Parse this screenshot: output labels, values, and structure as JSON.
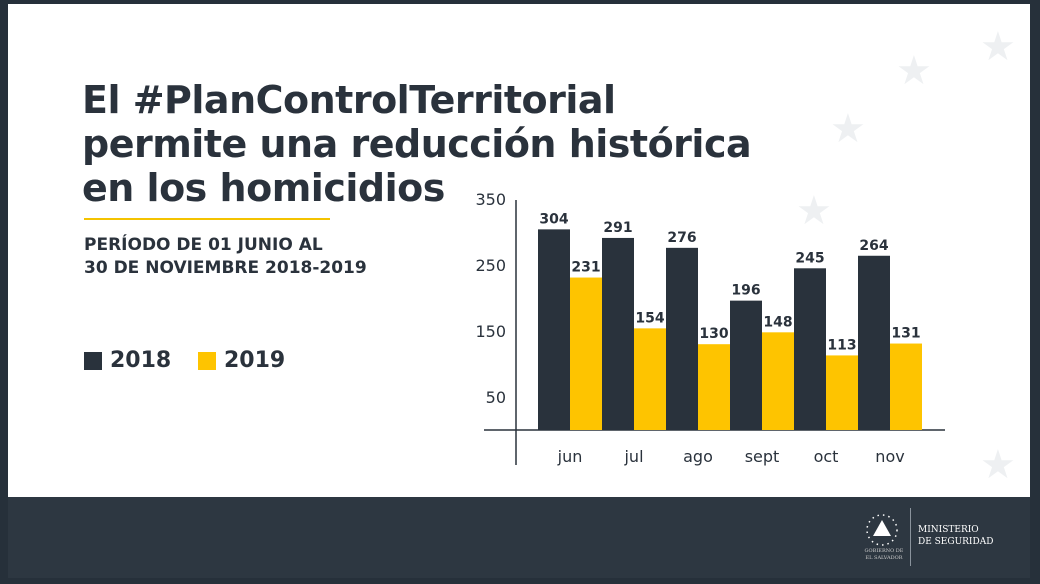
{
  "title_lines": [
    "El #PlanControlTerritorial",
    "permite una reducción histórica",
    "en los homicidios"
  ],
  "subtitle_lines": [
    "PERÍODO DE 01 JUNIO AL",
    "30 DE NOVIEMBRE 2018-2019"
  ],
  "footer": {
    "ministry_lines": [
      "MINISTERIO",
      "DE SEGURIDAD"
    ],
    "gov_lines": [
      "GOBIERNO DE",
      "EL SALVADOR"
    ]
  },
  "colors": {
    "2018": "#29323c",
    "2019": "#fec400"
  },
  "chart_data": {
    "type": "bar",
    "categories": [
      "jun",
      "jul",
      "ago",
      "sept",
      "oct",
      "nov"
    ],
    "series": [
      {
        "name": "2018",
        "values": [
          304,
          291,
          276,
          196,
          245,
          264
        ]
      },
      {
        "name": "2019",
        "values": [
          231,
          154,
          130,
          148,
          113,
          131
        ]
      }
    ],
    "yticks": [
      350,
      250,
      150,
      50
    ],
    "legend": "left",
    "grid": false
  }
}
